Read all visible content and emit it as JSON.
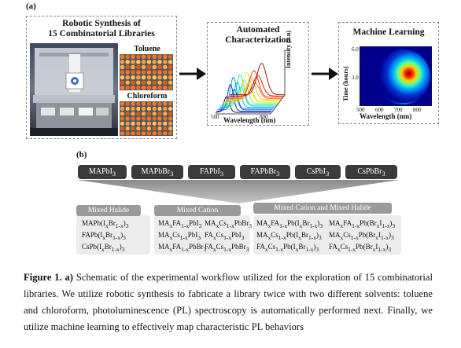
{
  "panel_a": {
    "label": "(a)",
    "synthesis": {
      "title_line1": "Robotic Synthesis of",
      "title_line2": "15 Combinatorial Libraries",
      "plate1_label": "Toluene",
      "plate2_label": "Chloroform"
    },
    "characterization": {
      "title_line1": "Automated",
      "title_line2": "Characterization",
      "xlabel": "Wavelength (nm)",
      "ylabel": "Intensity (a.u)",
      "xtick_left": "500",
      "xtick_right": "800"
    },
    "ml": {
      "title": "Machine Learning",
      "ylabel": "Time (hours)",
      "xlabel": "Wavelength (nm)",
      "yticks": [
        "6.0",
        "3.0"
      ],
      "xticks": [
        "500",
        "600",
        "700",
        "800"
      ]
    }
  },
  "panel_b": {
    "label": "(b)",
    "precursors": [
      "MAPbI<sub>3</sub>",
      "MAPbBr<sub>3</sub>",
      "FAPbI<sub>3</sub>",
      "FAPbBr<sub>3</sub>",
      "CsPbI<sub>3</sub>",
      "CsPbBr<sub>3</sub>"
    ],
    "categories": {
      "halide": {
        "label": "Mixed Halide",
        "items": [
          "MAPb(I<sub>x</sub>Br<sub>1-x</sub>)<sub>3</sub>",
          "FAPb(I<sub>x</sub>Br<sub>1-x</sub>)<sub>3</sub>",
          "CsPb(I<sub>x</sub>Br<sub>1-x</sub>)<sub>3</sub>"
        ]
      },
      "cation": {
        "label": "Mixed Cation",
        "items_col1": [
          "MA<sub>x</sub>FA<sub>1-x</sub>PbI<sub>3</sub>",
          "MA<sub>x</sub>Cs<sub>1-x</sub>PbI<sub>3</sub>",
          "MA<sub>x</sub>FA<sub>1-x</sub>PbBr<sub>3</sub>"
        ],
        "items_col2": [
          "MA<sub>x</sub>Cs<sub>1-x</sub>PbBr<sub>3</sub>",
          "FA<sub>x</sub>Cs<sub>1-x</sub>PbI<sub>3</sub>",
          "FA<sub>x</sub>Cs<sub>1-x</sub>PbBr<sub>3</sub>"
        ]
      },
      "both": {
        "label": "Mixed Cation and Mixed Halide",
        "items_col1": [
          "MA<sub>x</sub>FA<sub>1-x</sub>Pb(I<sub>x</sub>Br<sub>1-x</sub>)<sub>3</sub>",
          "MA<sub>x</sub>Cs<sub>1-x</sub>Pb(I<sub>x</sub>Br<sub>1-x</sub>)<sub>3</sub>",
          "FA<sub>x</sub>Cs<sub>1-x</sub>Pb(I<sub>x</sub>Br<sub>1-x</sub>)<sub>3</sub>"
        ],
        "items_col2": [
          "MA<sub>x</sub>FA<sub>1-x</sub>Pb(Br<sub>x</sub>I<sub>1-x</sub>)<sub>3</sub>",
          "MA<sub>x</sub>Cs<sub>1-x</sub>Pb(Br<sub>x</sub>I<sub>1-x</sub>)<sub>3</sub>",
          "FA<sub>x</sub>Cs<sub>1-x</sub>Pb(Br<sub>x</sub>I<sub>1-x</sub>)<sub>3</sub>"
        ]
      }
    }
  },
  "caption": {
    "lead": "Figure 1. a)",
    "text": " Schematic of the experimental workflow utilized for the exploration of 15 combinatorial libraries. We utilize robotic synthesis to fabricate a library twice with two different solvents: toluene and chloroform, photoluminescence (PL) spectroscopy is automatically performed next. Finally, we utilize machine learning to effectively map characteristic PL behaviors"
  },
  "colors": {
    "pill": "#3b3b3b",
    "tab": "#9a9a9a",
    "area": "#ececec",
    "dash": "#8a8a8a"
  }
}
